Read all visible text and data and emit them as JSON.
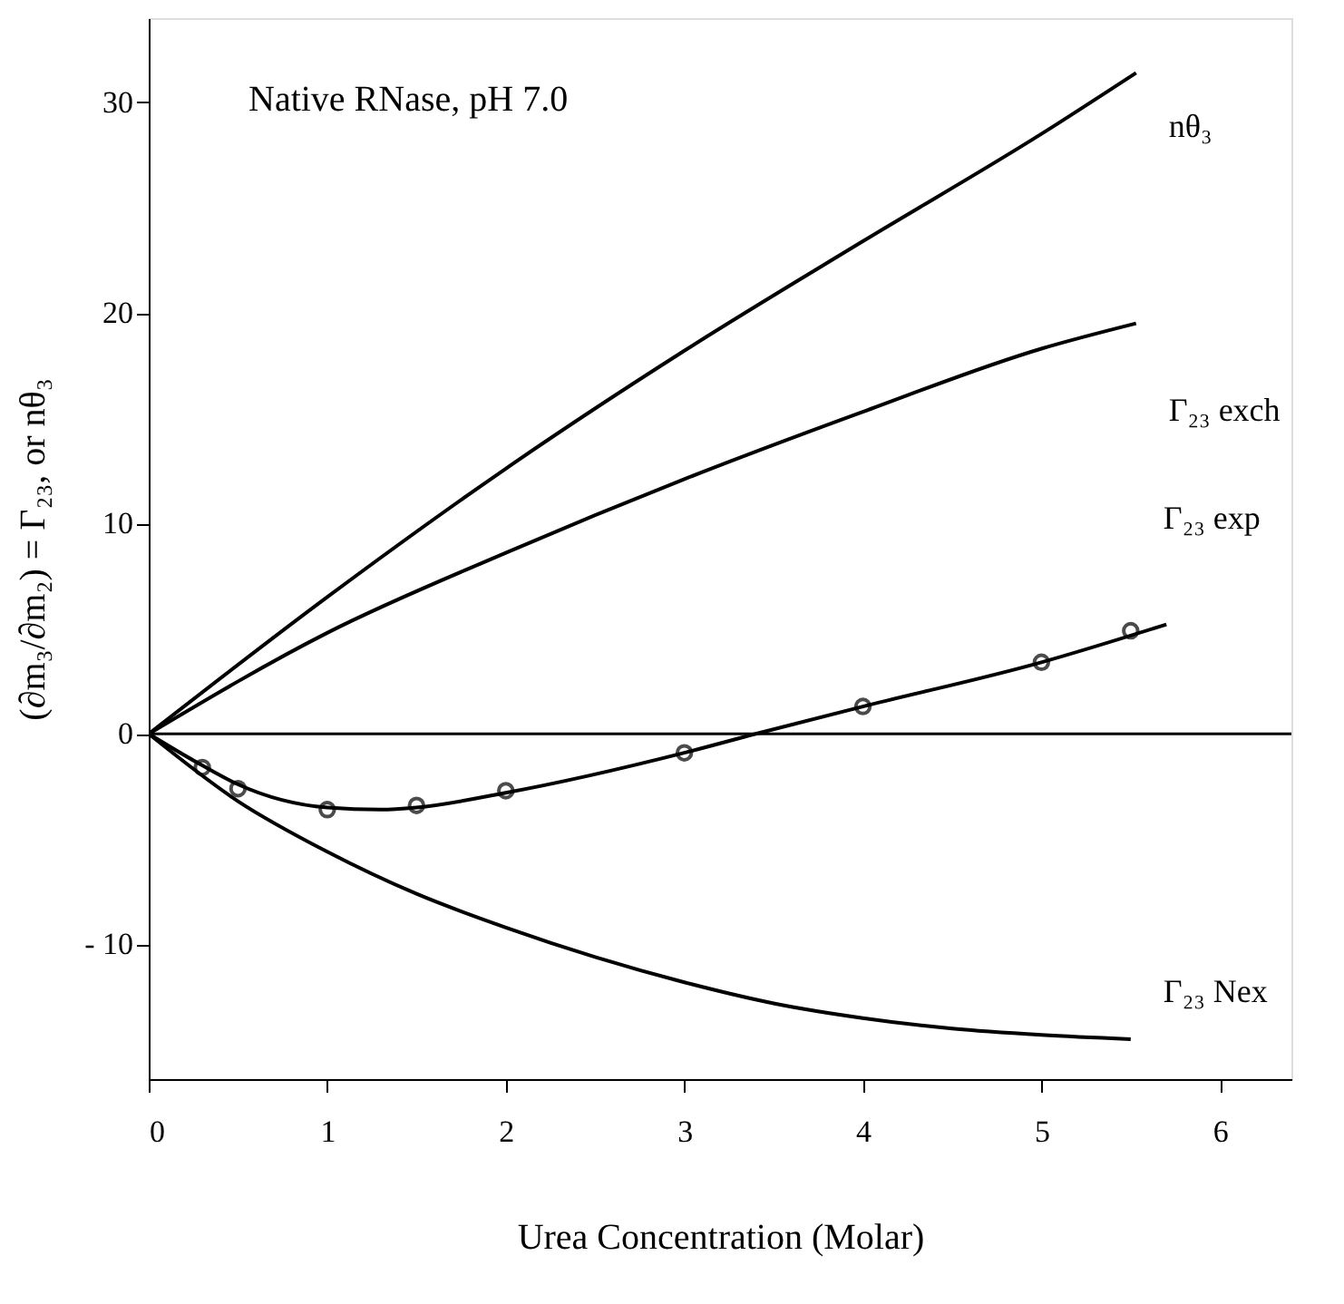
{
  "chart_data": {
    "type": "line",
    "xlabel": "Urea Concentration (Molar)",
    "ylabel": "(∂m₃/∂m₂) = Γ₂₃, or nθ₃",
    "annotations": [
      "Native RNase, pH 7.0"
    ],
    "xlim": [
      0,
      6.4
    ],
    "ylim": [
      -16.4,
      34
    ],
    "xticks": [
      0,
      1,
      2,
      3,
      4,
      5,
      6
    ],
    "marker": "none",
    "yticks": [
      {
        "value": -10,
        "label": "- 10"
      },
      0,
      10,
      20,
      30
    ],
    "grid": false,
    "line_style": "solid",
    "ref_lines": [
      {
        "axis": "y",
        "value": 0,
        "color": "#000000"
      }
    ],
    "series": [
      {
        "name": "nθ₃",
        "color": "#000000",
        "x": [
          0,
          1,
          2,
          3,
          4,
          5,
          5.53
        ],
        "values": [
          0,
          6.5,
          12.6,
          18.2,
          23.4,
          28.5,
          31.4
        ]
      },
      {
        "name": "Γ₂₃ exch",
        "color": "#000000",
        "x": [
          0,
          1,
          2,
          3,
          4,
          5,
          5.53
        ],
        "values": [
          0,
          4.8,
          8.6,
          12.1,
          15.3,
          18.3,
          19.5
        ]
      },
      {
        "name": "Γ₂₃ exp",
        "type": "scatter",
        "marker": "circle",
        "color": "#000000",
        "x": [
          0.3,
          0.5,
          1.0,
          1.5,
          2.0,
          3.0,
          4.0,
          5.0,
          5.5
        ],
        "values": [
          -1.6,
          -2.6,
          -3.6,
          -3.4,
          -2.7,
          -0.9,
          1.3,
          3.4,
          4.9
        ]
      },
      {
        "color": "#000000",
        "x": [
          0,
          0.3,
          0.5,
          1,
          1.3,
          1.5,
          2,
          3,
          3.4,
          4,
          5,
          5.7
        ],
        "values": [
          0,
          -1.5,
          -2.4,
          -3.5,
          -3.6,
          -3.5,
          -2.8,
          -0.9,
          0,
          1.3,
          3.4,
          5.2
        ]
      },
      {
        "name": "Γ₂₃ Nex",
        "color": "#000000",
        "x": [
          0,
          0.5,
          1,
          1.5,
          2,
          2.5,
          3,
          3.5,
          4,
          4.5,
          5,
          5.5
        ],
        "values": [
          0,
          -3.2,
          -5.6,
          -7.6,
          -9.2,
          -10.6,
          -11.8,
          -12.8,
          -13.5,
          -14.0,
          -14.3,
          -14.5
        ]
      }
    ]
  }
}
